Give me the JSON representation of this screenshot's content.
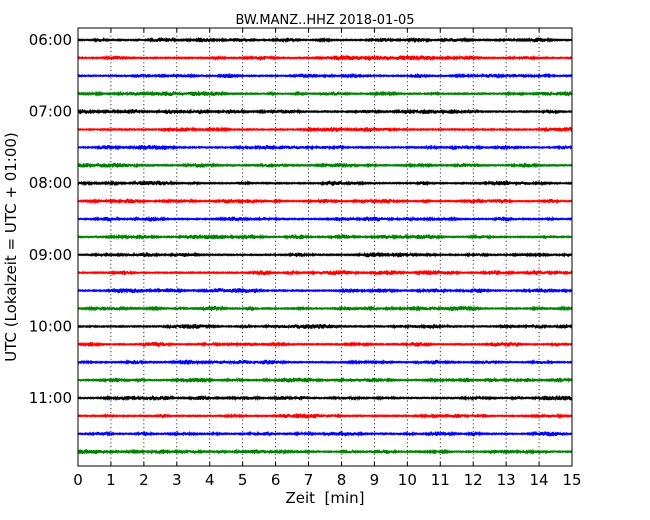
{
  "chart_data": {
    "type": "line",
    "title": "BW.MANZ..HHZ 2018-01-05",
    "xlabel": "Zeit  [min]",
    "ylabel": "UTC (Lokalzeit = UTC + 01:00)",
    "xlim": [
      0,
      15
    ],
    "x_ticks": [
      "0",
      "1",
      "2",
      "3",
      "4",
      "5",
      "6",
      "7",
      "8",
      "9",
      "10",
      "11",
      "12",
      "13",
      "14",
      "15"
    ],
    "y_ticks": [
      "06:00",
      "07:00",
      "08:00",
      "09:00",
      "10:00",
      "11:00"
    ],
    "grid": true,
    "trace_colors": [
      "#000000",
      "#ff0000",
      "#0000ff",
      "#008000"
    ],
    "traces": [
      {
        "start": "06:00"
      },
      {
        "start": "06:15"
      },
      {
        "start": "06:30"
      },
      {
        "start": "06:45"
      },
      {
        "start": "07:00"
      },
      {
        "start": "07:15"
      },
      {
        "start": "07:30"
      },
      {
        "start": "07:45"
      },
      {
        "start": "08:00"
      },
      {
        "start": "08:15"
      },
      {
        "start": "08:30"
      },
      {
        "start": "08:45"
      },
      {
        "start": "09:00"
      },
      {
        "start": "09:15"
      },
      {
        "start": "09:30"
      },
      {
        "start": "09:45"
      },
      {
        "start": "10:00"
      },
      {
        "start": "10:15"
      },
      {
        "start": "10:30"
      },
      {
        "start": "10:45"
      },
      {
        "start": "11:00"
      },
      {
        "start": "11:15"
      },
      {
        "start": "11:30"
      },
      {
        "start": "11:45"
      }
    ]
  }
}
